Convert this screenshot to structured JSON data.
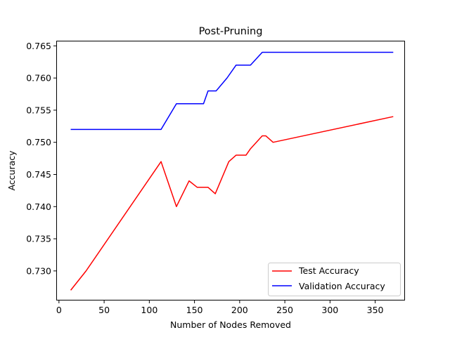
{
  "chart_data": {
    "type": "line",
    "title": "Post-Pruning",
    "xlabel": "Number of Nodes Removed",
    "ylabel": "Accuracy",
    "xlim": [
      -3,
      383
    ],
    "ylim": [
      0.7254,
      0.7658
    ],
    "xticks": [
      0,
      50,
      100,
      150,
      200,
      250,
      300,
      350
    ],
    "yticks": [
      0.73,
      0.735,
      0.74,
      0.745,
      0.75,
      0.755,
      0.76,
      0.765
    ],
    "ytick_labels": [
      "0.730",
      "0.735",
      "0.740",
      "0.745",
      "0.750",
      "0.755",
      "0.760",
      "0.765"
    ],
    "grid": false,
    "legend_position": "lower right",
    "series": [
      {
        "name": "Test Accuracy",
        "color": "#ff0000",
        "points": [
          [
            13,
            0.727
          ],
          [
            30,
            0.73
          ],
          [
            113,
            0.747
          ],
          [
            130,
            0.74
          ],
          [
            144,
            0.744
          ],
          [
            153,
            0.743
          ],
          [
            165,
            0.743
          ],
          [
            173,
            0.742
          ],
          [
            188,
            0.747
          ],
          [
            196,
            0.748
          ],
          [
            207,
            0.748
          ],
          [
            212,
            0.749
          ],
          [
            225,
            0.751
          ],
          [
            229,
            0.751
          ],
          [
            237,
            0.75
          ],
          [
            370,
            0.754
          ]
        ]
      },
      {
        "name": "Validation Accuracy",
        "color": "#0000ff",
        "points": [
          [
            13,
            0.752
          ],
          [
            113,
            0.752
          ],
          [
            130,
            0.756
          ],
          [
            160,
            0.756
          ],
          [
            165,
            0.758
          ],
          [
            174,
            0.758
          ],
          [
            186,
            0.76
          ],
          [
            196,
            0.762
          ],
          [
            212,
            0.762
          ],
          [
            225,
            0.764
          ],
          [
            370,
            0.764
          ]
        ]
      }
    ]
  }
}
